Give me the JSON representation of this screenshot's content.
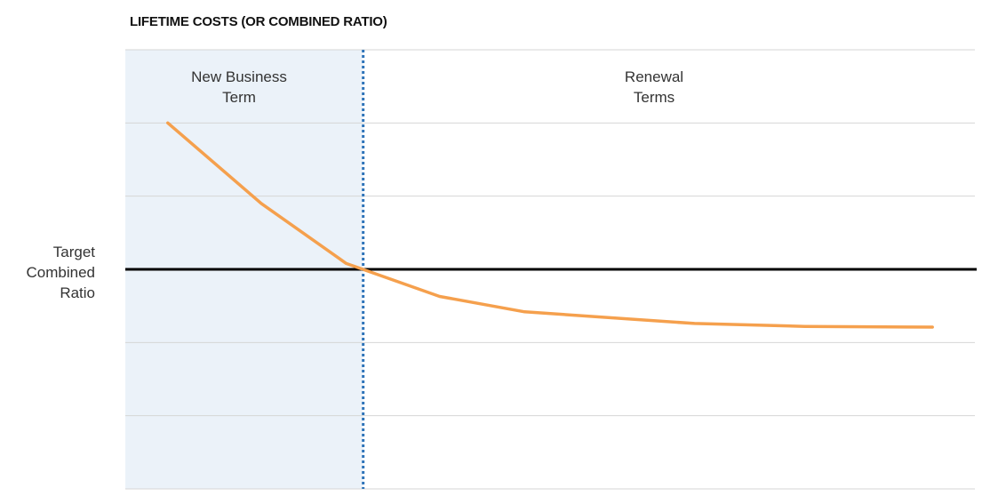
{
  "chart_data": {
    "type": "line",
    "title": "LIFETIME COSTS (OR COMBINED RATIO)",
    "xlabel": "",
    "ylabel": "",
    "regions": [
      {
        "name_lines": [
          "New Business",
          "Term"
        ]
      },
      {
        "name_lines": [
          "Renewal",
          "Terms"
        ]
      }
    ],
    "reference_line": {
      "label_lines": [
        "Target",
        "Combined",
        "Ratio"
      ]
    },
    "grid": true,
    "ylim": [
      0,
      6
    ],
    "xlim": [
      0,
      10
    ],
    "region_boundary_x": 2.8,
    "reference_y": 3,
    "series": [
      {
        "color": "#f5a04d",
        "x": [
          0.5,
          1.6,
          2.6,
          3.7,
          4.7,
          6.7,
          8.0,
          9.5
        ],
        "y": [
          5.0,
          3.9,
          3.08,
          2.63,
          2.42,
          2.26,
          2.22,
          2.21
        ]
      }
    ]
  },
  "colors": {
    "series": "#f5a04d",
    "region_shade": "#ebf2f9",
    "boundary": "#2f74b9",
    "reference": "#000000",
    "grid": "#d6d6d6"
  }
}
